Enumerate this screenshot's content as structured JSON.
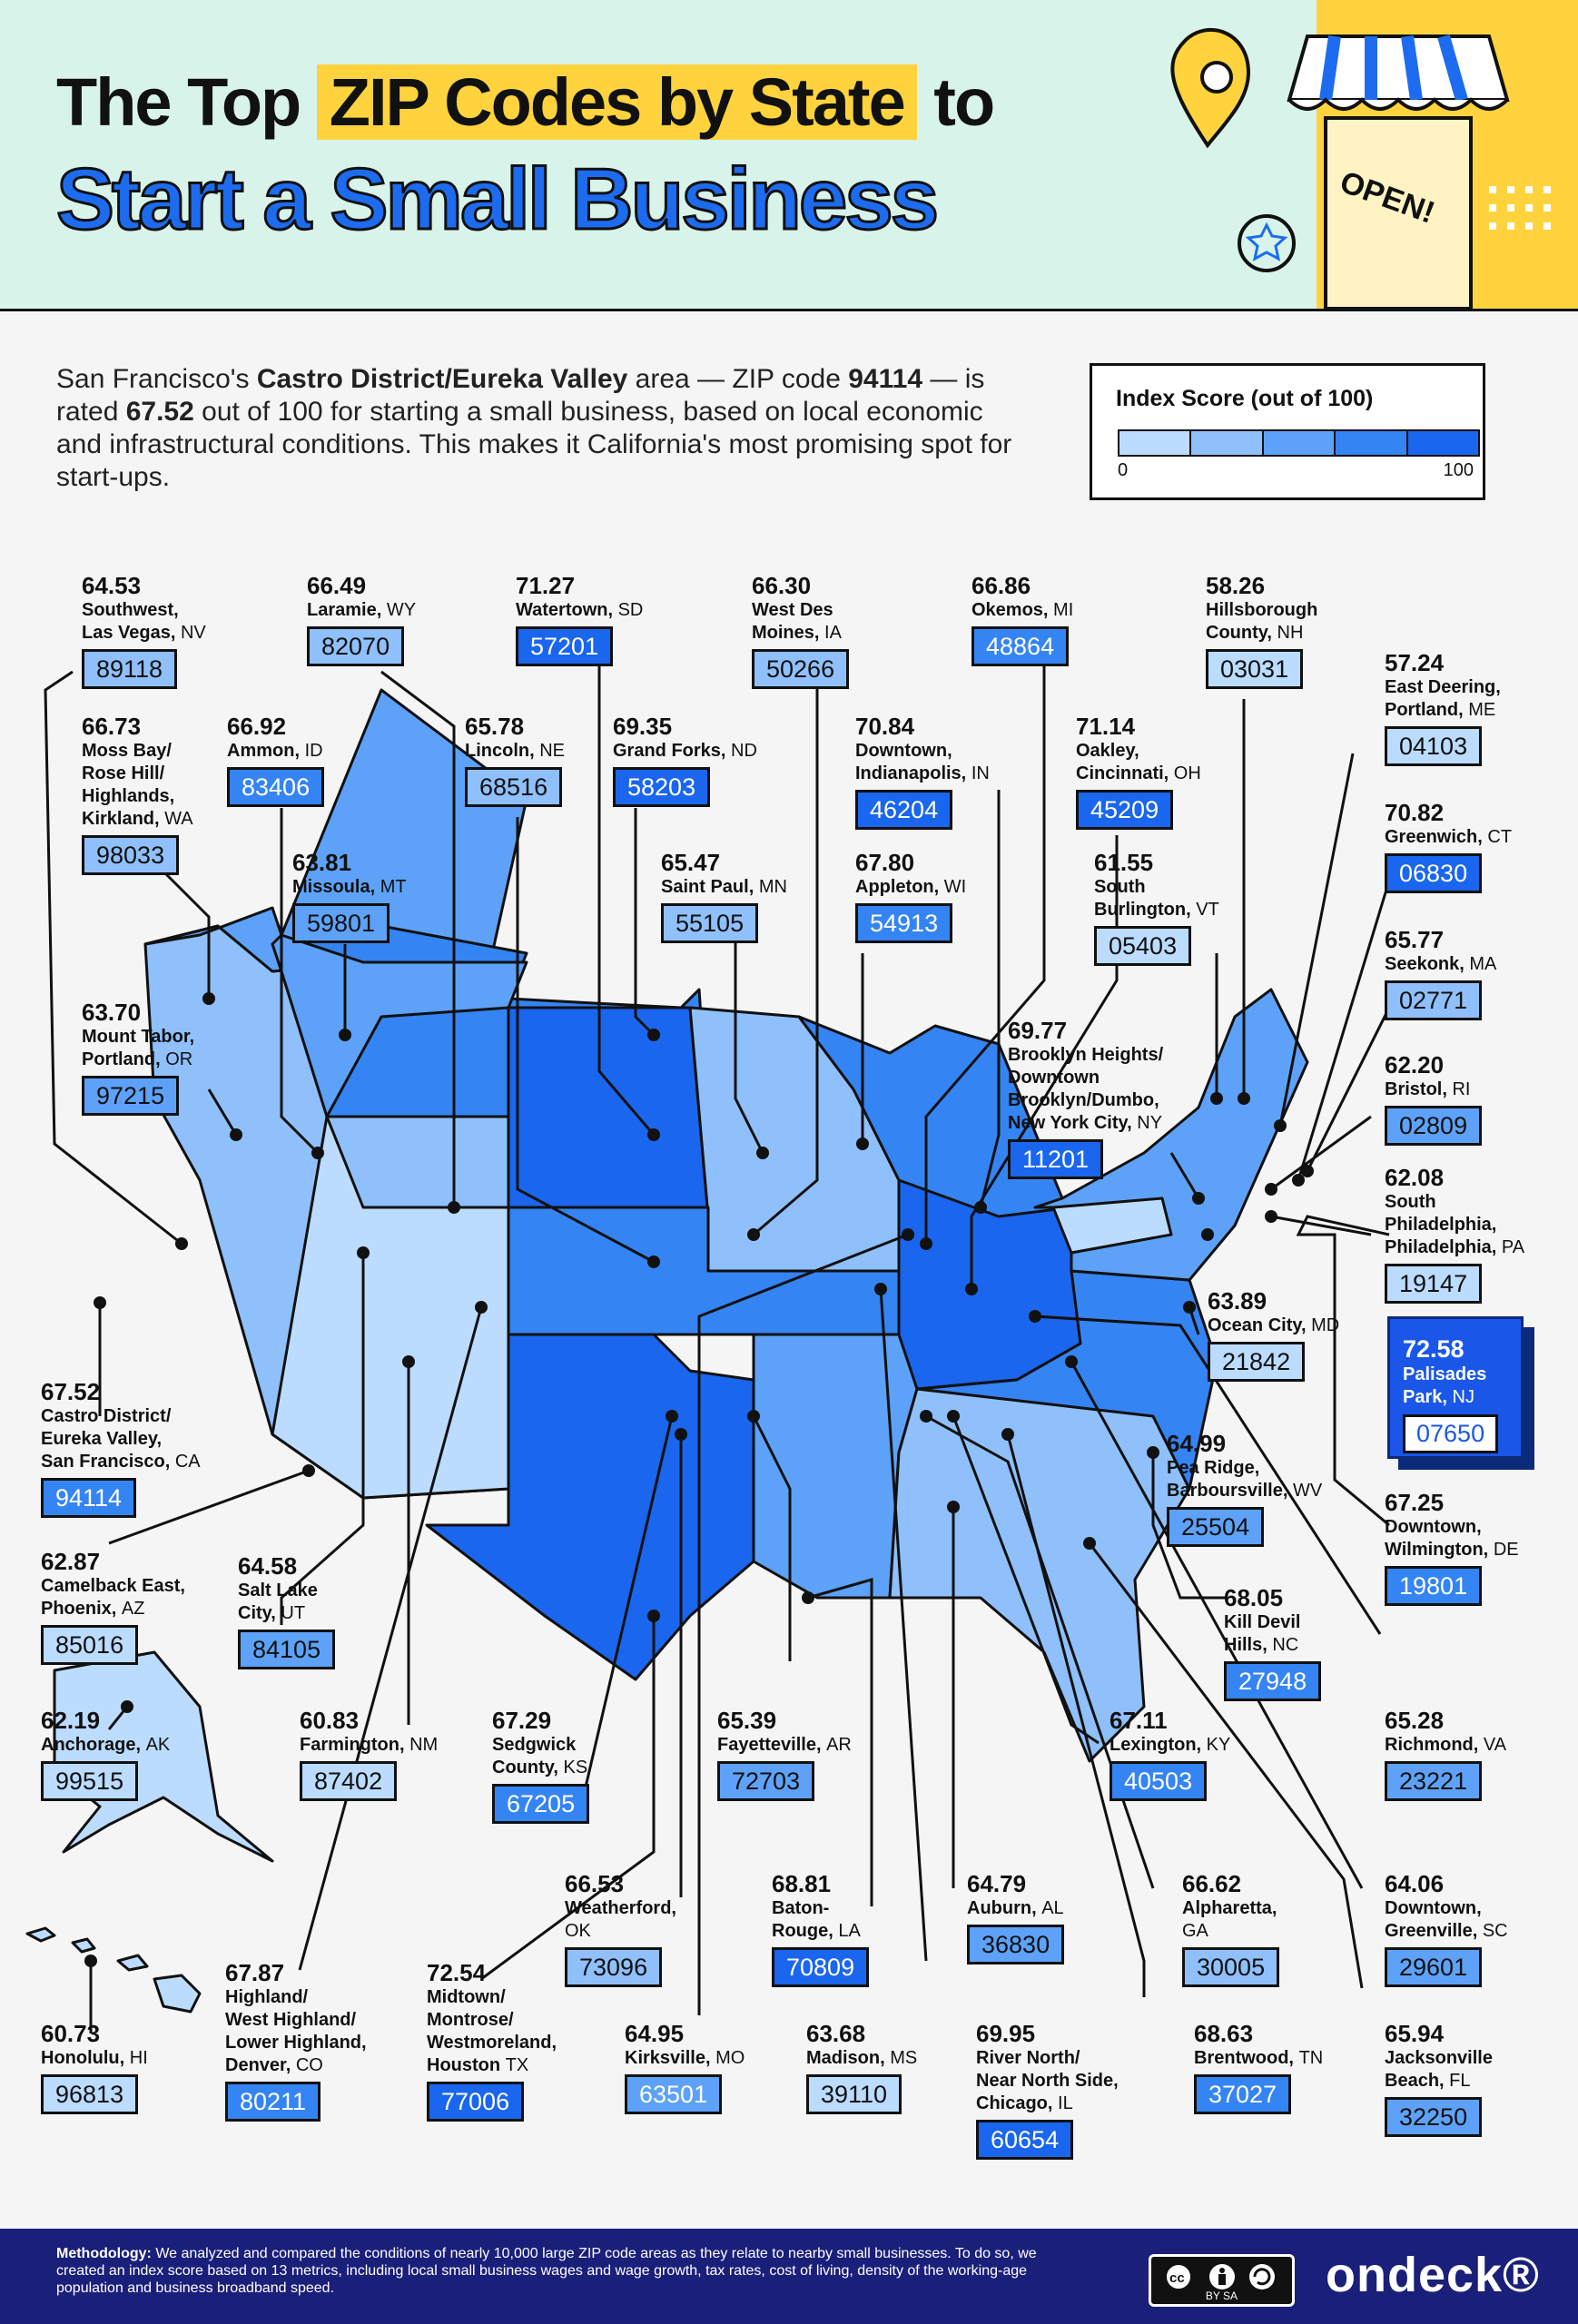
{
  "title": {
    "line1_pre": "The Top",
    "line1_highlight": "ZIP Codes by State",
    "line1_post": "to",
    "line2": "Start a Small Business",
    "sign_text": "OPEN!"
  },
  "intro": {
    "p1": "San Francisco's ",
    "b1": "Castro District/Eureka Valley",
    "p2": " area — ZIP code ",
    "b2": "94114",
    "p3": " — is rated ",
    "b3": "67.52",
    "p4": " out of 100 for starting a small business, based on local economic and infrastructural conditions. This makes it California's most promising spot for start-ups."
  },
  "legend": {
    "title": "Index Score (out of 100)",
    "min": "0",
    "max": "100",
    "colors": [
      "#bcdcff",
      "#8fc0fb",
      "#5da2f8",
      "#3584f3",
      "#1a66ee"
    ]
  },
  "colors": {
    "header_bg": "#d8f4ea",
    "highlight": "#ffd33d",
    "title_blue": "#1d6cf0",
    "footer_bg": "#1a1f7a",
    "featured_bg": "#1a57e8"
  },
  "callouts": [
    {
      "score": "64.53",
      "place": "Southwest,\nLas Vegas,",
      "state": "NV",
      "zip": "89118"
    },
    {
      "score": "66.49",
      "place": "Laramie,",
      "state": "WY",
      "zip": "82070"
    },
    {
      "score": "71.27",
      "place": "Watertown,",
      "state": "SD",
      "zip": "57201"
    },
    {
      "score": "66.30",
      "place": "West Des\nMoines,",
      "state": "IA",
      "zip": "50266"
    },
    {
      "score": "66.86",
      "place": "Okemos,",
      "state": "MI",
      "zip": "48864"
    },
    {
      "score": "58.26",
      "place": "Hillsborough\nCounty,",
      "state": "NH",
      "zip": "03031"
    },
    {
      "score": "66.73",
      "place": "Moss Bay/\nRose Hill/\nHighlands,\nKirkland,",
      "state": "WA",
      "zip": "98033"
    },
    {
      "score": "66.92",
      "place": "Ammon,",
      "state": "ID",
      "zip": "83406"
    },
    {
      "score": "65.78",
      "place": "Lincoln,",
      "state": "NE",
      "zip": "68516"
    },
    {
      "score": "69.35",
      "place": "Grand Forks,",
      "state": "ND",
      "zip": "58203"
    },
    {
      "score": "70.84",
      "place": "Downtown,\nIndianapolis,",
      "state": "IN",
      "zip": "46204"
    },
    {
      "score": "71.14",
      "place": "Oakley,\nCincinnati,",
      "state": "OH",
      "zip": "45209"
    },
    {
      "score": "57.24",
      "place": "East Deering,\nPortland,",
      "state": "ME",
      "zip": "04103"
    },
    {
      "score": "63.81",
      "place": "Missoula,",
      "state": "MT",
      "zip": "59801"
    },
    {
      "score": "65.47",
      "place": "Saint Paul,",
      "state": "MN",
      "zip": "55105"
    },
    {
      "score": "67.80",
      "place": "Appleton,",
      "state": "WI",
      "zip": "54913"
    },
    {
      "score": "61.55",
      "place": "South\nBurlington,",
      "state": "VT",
      "zip": "05403"
    },
    {
      "score": "70.82",
      "place": "Greenwich,",
      "state": "CT",
      "zip": "06830"
    },
    {
      "score": "63.70",
      "place": "Mount Tabor,\nPortland,",
      "state": "OR",
      "zip": "97215"
    },
    {
      "score": "65.77",
      "place": "Seekonk,",
      "state": "MA",
      "zip": "02771"
    },
    {
      "score": "69.77",
      "place": "Brooklyn Heights/\nDowntown\nBrooklyn/Dumbo,\nNew York City,",
      "state": "NY",
      "zip": "11201"
    },
    {
      "score": "62.20",
      "place": "Bristol,",
      "state": "RI",
      "zip": "02809"
    },
    {
      "score": "62.08",
      "place": "South\nPhiladelphia,\nPhiladelphia,",
      "state": "PA",
      "zip": "19147"
    },
    {
      "score": "63.89",
      "place": "Ocean City,",
      "state": "MD",
      "zip": "21842"
    },
    {
      "score": "67.52",
      "place": "Castro District/\nEureka Valley,\nSan Francisco,",
      "state": "CA",
      "zip": "94114"
    },
    {
      "score": "64.99",
      "place": "Pea Ridge,\nBarboursville,",
      "state": "WV",
      "zip": "25504"
    },
    {
      "score": "67.25",
      "place": "Downtown,\nWilmington,",
      "state": "DE",
      "zip": "19801"
    },
    {
      "score": "62.87",
      "place": "Camelback East,\nPhoenix,",
      "state": "AZ",
      "zip": "85016"
    },
    {
      "score": "64.58",
      "place": "Salt Lake\nCity,",
      "state": "UT",
      "zip": "84105"
    },
    {
      "score": "68.05",
      "place": "Kill Devil\nHills,",
      "state": "NC",
      "zip": "27948"
    },
    {
      "score": "62.19",
      "place": "Anchorage,",
      "state": "AK",
      "zip": "99515"
    },
    {
      "score": "60.83",
      "place": "Farmington,",
      "state": "NM",
      "zip": "87402"
    },
    {
      "score": "67.29",
      "place": "Sedgwick\nCounty,",
      "state": "KS",
      "zip": "67205"
    },
    {
      "score": "65.39",
      "place": "Fayetteville,",
      "state": "AR",
      "zip": "72703"
    },
    {
      "score": "67.11",
      "place": "Lexington,",
      "state": "KY",
      "zip": "40503"
    },
    {
      "score": "65.28",
      "place": "Richmond,",
      "state": "VA",
      "zip": "23221"
    },
    {
      "score": "66.53",
      "place": "Weatherford,\n",
      "state": "OK",
      "zip": "73096"
    },
    {
      "score": "68.81",
      "place": "Baton-\nRouge,",
      "state": "LA",
      "zip": "70809"
    },
    {
      "score": "64.79",
      "place": "Auburn,",
      "state": "AL",
      "zip": "36830"
    },
    {
      "score": "66.62",
      "place": "Alpharetta,\n",
      "state": "GA",
      "zip": "30005"
    },
    {
      "score": "64.06",
      "place": "Downtown,\nGreenville,",
      "state": "SC",
      "zip": "29601"
    },
    {
      "score": "60.73",
      "place": "Honolulu,",
      "state": "HI",
      "zip": "96813"
    },
    {
      "score": "67.87",
      "place": "Highland/\nWest Highland/\nLower Highland,\nDenver,",
      "state": "CO",
      "zip": "80211"
    },
    {
      "score": "72.54",
      "place": "Midtown/\nMontrose/\nWestmoreland,\nHouston",
      "state": "TX",
      "zip": "77006"
    },
    {
      "score": "64.95",
      "place": "Kirksville,",
      "state": "MO",
      "zip": "63501"
    },
    {
      "score": "63.68",
      "place": "Madison,",
      "state": "MS",
      "zip": "39110"
    },
    {
      "score": "69.95",
      "place": "River North/\nNear North Side,\nChicago,",
      "state": "IL",
      "zip": "60654"
    },
    {
      "score": "68.63",
      "place": "Brentwood,",
      "state": "TN",
      "zip": "37027"
    },
    {
      "score": "65.94",
      "place": "Jacksonville\nBeach,",
      "state": "FL",
      "zip": "32250"
    }
  ],
  "featured": {
    "score": "72.58",
    "place": "Palisades\nPark,",
    "state": "NJ",
    "zip": "07650"
  },
  "footer": {
    "method_label": "Methodology:",
    "method_text": " We analyzed and compared the conditions of nearly 10,000 large ZIP code areas as they relate to nearby small businesses. To do so, we created an index score based on 13 metrics, including local small business wages and wage growth, tax rates, cost of living, density of the working-age population and business broadband speed.",
    "license": "BY    SA",
    "brand": "ondeck®"
  }
}
